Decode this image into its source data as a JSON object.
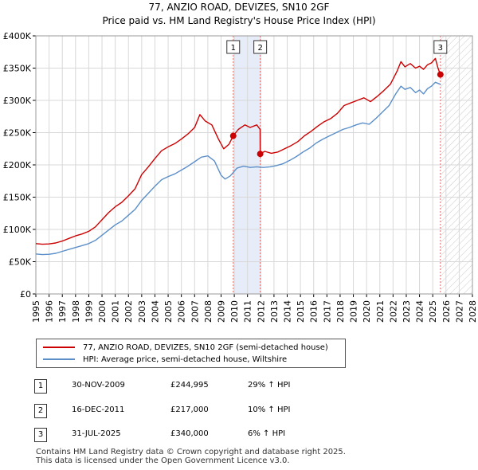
{
  "title_line1": "77, ANZIO ROAD, DEVIZES, SN10 2GF",
  "title_line2": "Price paid vs. HM Land Registry's House Price Index (HPI)",
  "colors": {
    "property": "#cc0000",
    "hpi": "#5b8fc9",
    "shade": "#e6ecf8",
    "grid": "#d8d8d8",
    "annotation_line": "#e07070"
  },
  "chart_data": {
    "type": "line",
    "xlim": [
      1995,
      2028
    ],
    "ylim": [
      0,
      400000
    ],
    "x_ticks": [
      "1995",
      "1996",
      "1997",
      "1998",
      "1999",
      "2000",
      "2001",
      "2002",
      "2003",
      "2004",
      "2005",
      "2006",
      "2007",
      "2008",
      "2009",
      "2010",
      "2011",
      "2012",
      "2013",
      "2014",
      "2015",
      "2016",
      "2017",
      "2018",
      "2019",
      "2020",
      "2021",
      "2022",
      "2023",
      "2024",
      "2025",
      "2026",
      "2027",
      "2028"
    ],
    "y_ticks": [
      {
        "value": 0,
        "label": "£0"
      },
      {
        "value": 50000,
        "label": "£50K"
      },
      {
        "value": 100000,
        "label": "£100K"
      },
      {
        "value": 150000,
        "label": "£150K"
      },
      {
        "value": 200000,
        "label": "£200K"
      },
      {
        "value": 250000,
        "label": "£250K"
      },
      {
        "value": 300000,
        "label": "£300K"
      },
      {
        "value": 350000,
        "label": "£350K"
      },
      {
        "value": 400000,
        "label": "£400K"
      }
    ],
    "shaded_period": [
      2009.92,
      2011.96
    ],
    "future_hatch_from": 2025.58,
    "series": [
      {
        "name": "77, ANZIO ROAD, DEVIZES, SN10 2GF (semi-detached house)",
        "color_key": "property",
        "points": [
          [
            1995.0,
            78000
          ],
          [
            1995.5,
            77000
          ],
          [
            1996.0,
            77500
          ],
          [
            1996.5,
            79000
          ],
          [
            1997.0,
            82000
          ],
          [
            1997.5,
            86000
          ],
          [
            1998.0,
            90000
          ],
          [
            1998.5,
            93000
          ],
          [
            1999.0,
            97000
          ],
          [
            1999.5,
            104000
          ],
          [
            2000.0,
            115000
          ],
          [
            2000.5,
            126000
          ],
          [
            2001.0,
            135000
          ],
          [
            2001.5,
            142000
          ],
          [
            2002.0,
            152000
          ],
          [
            2002.5,
            163000
          ],
          [
            2003.0,
            185000
          ],
          [
            2003.5,
            197000
          ],
          [
            2004.0,
            210000
          ],
          [
            2004.5,
            222000
          ],
          [
            2005.0,
            228000
          ],
          [
            2005.5,
            233000
          ],
          [
            2006.0,
            240000
          ],
          [
            2006.5,
            248000
          ],
          [
            2007.0,
            258000
          ],
          [
            2007.4,
            278000
          ],
          [
            2007.8,
            268000
          ],
          [
            2008.3,
            262000
          ],
          [
            2008.8,
            240000
          ],
          [
            2009.2,
            225000
          ],
          [
            2009.6,
            232000
          ],
          [
            2009.92,
            244995
          ],
          [
            2010.3,
            255000
          ],
          [
            2010.8,
            262000
          ],
          [
            2011.2,
            258000
          ],
          [
            2011.7,
            262000
          ],
          [
            2011.95,
            255000
          ],
          [
            2011.96,
            217000
          ],
          [
            2012.3,
            221000
          ],
          [
            2012.8,
            218000
          ],
          [
            2013.3,
            220000
          ],
          [
            2013.8,
            225000
          ],
          [
            2014.3,
            230000
          ],
          [
            2014.8,
            236000
          ],
          [
            2015.3,
            245000
          ],
          [
            2015.8,
            252000
          ],
          [
            2016.3,
            260000
          ],
          [
            2016.8,
            267000
          ],
          [
            2017.3,
            272000
          ],
          [
            2017.8,
            280000
          ],
          [
            2018.3,
            292000
          ],
          [
            2018.8,
            296000
          ],
          [
            2019.3,
            300000
          ],
          [
            2019.8,
            304000
          ],
          [
            2020.3,
            298000
          ],
          [
            2020.8,
            306000
          ],
          [
            2021.3,
            315000
          ],
          [
            2021.8,
            325000
          ],
          [
            2022.3,
            345000
          ],
          [
            2022.6,
            360000
          ],
          [
            2022.9,
            352000
          ],
          [
            2023.3,
            357000
          ],
          [
            2023.7,
            350000
          ],
          [
            2024.0,
            353000
          ],
          [
            2024.3,
            348000
          ],
          [
            2024.6,
            355000
          ],
          [
            2024.9,
            358000
          ],
          [
            2025.2,
            365000
          ],
          [
            2025.4,
            350000
          ],
          [
            2025.58,
            340000
          ]
        ]
      },
      {
        "name": "HPI: Average price, semi-detached house, Wiltshire",
        "color_key": "hpi",
        "points": [
          [
            1995.0,
            62000
          ],
          [
            1995.5,
            61000
          ],
          [
            1996.0,
            61500
          ],
          [
            1996.5,
            63000
          ],
          [
            1997.0,
            66000
          ],
          [
            1997.5,
            69000
          ],
          [
            1998.0,
            72000
          ],
          [
            1998.5,
            75000
          ],
          [
            1999.0,
            78000
          ],
          [
            1999.5,
            83000
          ],
          [
            2000.0,
            91000
          ],
          [
            2000.5,
            99000
          ],
          [
            2001.0,
            107000
          ],
          [
            2001.5,
            113000
          ],
          [
            2002.0,
            122000
          ],
          [
            2002.5,
            131000
          ],
          [
            2003.0,
            145000
          ],
          [
            2003.5,
            156000
          ],
          [
            2004.0,
            167000
          ],
          [
            2004.5,
            177000
          ],
          [
            2005.0,
            182000
          ],
          [
            2005.5,
            186000
          ],
          [
            2006.0,
            192000
          ],
          [
            2006.5,
            198000
          ],
          [
            2007.0,
            205000
          ],
          [
            2007.5,
            212000
          ],
          [
            2008.0,
            214000
          ],
          [
            2008.5,
            206000
          ],
          [
            2009.0,
            184000
          ],
          [
            2009.3,
            178000
          ],
          [
            2009.7,
            183000
          ],
          [
            2010.2,
            195000
          ],
          [
            2010.7,
            198000
          ],
          [
            2011.2,
            196000
          ],
          [
            2011.7,
            197000
          ],
          [
            2012.2,
            196000
          ],
          [
            2012.7,
            197000
          ],
          [
            2013.2,
            199000
          ],
          [
            2013.7,
            202000
          ],
          [
            2014.2,
            207000
          ],
          [
            2014.7,
            213000
          ],
          [
            2015.2,
            220000
          ],
          [
            2015.7,
            226000
          ],
          [
            2016.2,
            234000
          ],
          [
            2016.7,
            240000
          ],
          [
            2017.2,
            245000
          ],
          [
            2017.7,
            250000
          ],
          [
            2018.2,
            255000
          ],
          [
            2018.7,
            258000
          ],
          [
            2019.2,
            262000
          ],
          [
            2019.7,
            265000
          ],
          [
            2020.2,
            263000
          ],
          [
            2020.7,
            272000
          ],
          [
            2021.2,
            282000
          ],
          [
            2021.7,
            292000
          ],
          [
            2022.2,
            310000
          ],
          [
            2022.6,
            322000
          ],
          [
            2022.9,
            317000
          ],
          [
            2023.3,
            320000
          ],
          [
            2023.7,
            312000
          ],
          [
            2024.0,
            316000
          ],
          [
            2024.3,
            310000
          ],
          [
            2024.6,
            318000
          ],
          [
            2024.9,
            322000
          ],
          [
            2025.2,
            328000
          ],
          [
            2025.58,
            325000
          ]
        ]
      }
    ],
    "annotations": [
      {
        "label": "1",
        "x": 2009.92,
        "y": 244995
      },
      {
        "label": "2",
        "x": 2011.96,
        "y": 217000
      },
      {
        "label": "3",
        "x": 2025.58,
        "y": 340000
      }
    ]
  },
  "legend": {
    "items": [
      {
        "label": "77, ANZIO ROAD, DEVIZES, SN10 2GF (semi-detached house)"
      },
      {
        "label": "HPI: Average price, semi-detached house, Wiltshire"
      }
    ]
  },
  "transactions": [
    {
      "num": "1",
      "date": "30-NOV-2009",
      "price": "£244,995",
      "hpi": "29% ↑ HPI"
    },
    {
      "num": "2",
      "date": "16-DEC-2011",
      "price": "£217,000",
      "hpi": "10% ↑ HPI"
    },
    {
      "num": "3",
      "date": "31-JUL-2025",
      "price": "£340,000",
      "hpi": "6% ↑ HPI"
    }
  ],
  "footer": {
    "line1": "Contains HM Land Registry data © Crown copyright and database right 2025.",
    "line2": "This data is licensed under the Open Government Licence v3.0."
  }
}
